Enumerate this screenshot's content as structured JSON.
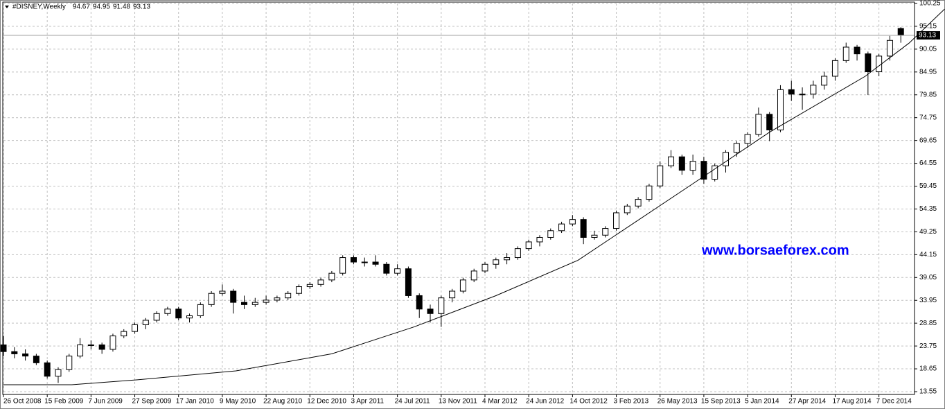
{
  "chart_data": {
    "type": "candlestick",
    "title": "#DISNEY,Weekly",
    "watermark": "www.borsaeforex.com",
    "ylim": [
      13.55,
      100.25
    ],
    "yticks": [
      13.55,
      18.65,
      23.75,
      28.85,
      33.95,
      39.05,
      44.15,
      49.25,
      54.35,
      59.45,
      64.55,
      69.65,
      74.75,
      79.85,
      84.95,
      90.05,
      95.15,
      100.25
    ],
    "xlim": [
      0,
      332.5
    ],
    "xticks": [
      {
        "value": 0,
        "label": "26 Oct 2008"
      },
      {
        "value": 16,
        "label": "15 Feb 2009"
      },
      {
        "value": 32,
        "label": "7 Jun 2009"
      },
      {
        "value": 48,
        "label": "27 Sep 2009"
      },
      {
        "value": 64,
        "label": "17 Jan 2010"
      },
      {
        "value": 80,
        "label": "9 May 2010"
      },
      {
        "value": 96,
        "label": "22 Aug 2010"
      },
      {
        "value": 112,
        "label": "12 Dec 2010"
      },
      {
        "value": 128,
        "label": "3 Apr 2011"
      },
      {
        "value": 144,
        "label": "24 Jul 2011"
      },
      {
        "value": 160,
        "label": "13 Nov 2011"
      },
      {
        "value": 176,
        "label": "4 Mar 2012"
      },
      {
        "value": 192,
        "label": "24 Jun 2012"
      },
      {
        "value": 208,
        "label": "14 Oct 2012"
      },
      {
        "value": 224,
        "label": "3 Feb 2013"
      },
      {
        "value": 240,
        "label": "26 May 2013"
      },
      {
        "value": 256,
        "label": "15 Sep 2013"
      },
      {
        "value": 272,
        "label": "5 Jan 2014"
      },
      {
        "value": 288,
        "label": "27 Apr 2014"
      },
      {
        "value": 304,
        "label": "17 Aug 2014"
      },
      {
        "value": 320,
        "label": "7 Dec 2014"
      }
    ],
    "grid": true,
    "up_color": "#ffffff",
    "down_color": "#000000",
    "x": [
      0,
      4,
      8,
      12,
      16,
      20,
      24,
      28,
      32,
      36,
      40,
      44,
      48,
      52,
      56,
      60,
      64,
      68,
      72,
      76,
      80,
      84,
      88,
      92,
      96,
      100,
      104,
      108,
      112,
      116,
      120,
      124,
      128,
      132,
      136,
      140,
      144,
      148,
      152,
      156,
      160,
      164,
      168,
      172,
      176,
      180,
      184,
      188,
      192,
      196,
      200,
      204,
      208,
      212,
      216,
      220,
      224,
      228,
      232,
      236,
      240,
      244,
      248,
      252,
      256,
      260,
      264,
      268,
      272,
      276,
      280,
      284,
      288,
      292,
      296,
      300,
      304,
      308,
      312,
      316,
      320,
      324,
      328
    ],
    "candles": [
      [
        24,
        26,
        21.5,
        22.5
      ],
      [
        22.5,
        23.5,
        21,
        22
      ],
      [
        22,
        23,
        20.5,
        21.5
      ],
      [
        21.5,
        22,
        19.5,
        20
      ],
      [
        20,
        20.5,
        16.5,
        17
      ],
      [
        17,
        19,
        15.5,
        18.5
      ],
      [
        18.5,
        22,
        18,
        21.5
      ],
      [
        21.5,
        25.5,
        21,
        24
      ],
      [
        24,
        25,
        23,
        24
      ],
      [
        24,
        24.5,
        22,
        23
      ],
      [
        23,
        26.5,
        22.5,
        26
      ],
      [
        26,
        27.5,
        25.5,
        27
      ],
      [
        27,
        29,
        26.5,
        28.5
      ],
      [
        28.5,
        30,
        27.5,
        29.5
      ],
      [
        29.5,
        31.5,
        29,
        31
      ],
      [
        31,
        32.5,
        30.5,
        32
      ],
      [
        32,
        32.5,
        29.5,
        30
      ],
      [
        30,
        31,
        29,
        30.5
      ],
      [
        30.5,
        33.5,
        30,
        33
      ],
      [
        33,
        36,
        32.5,
        35.5
      ],
      [
        35.5,
        37.5,
        35,
        36
      ],
      [
        36,
        36.5,
        31,
        33.5
      ],
      [
        33.5,
        35,
        32,
        33
      ],
      [
        33,
        34.5,
        32.5,
        33.5
      ],
      [
        33.5,
        35,
        33,
        34
      ],
      [
        34,
        35,
        33.5,
        34.5
      ],
      [
        34.5,
        36,
        34,
        35.5
      ],
      [
        35.5,
        37.5,
        35,
        37
      ],
      [
        37,
        38,
        36.5,
        37.5
      ],
      [
        37.5,
        39,
        37,
        38.5
      ],
      [
        38.5,
        40.5,
        38,
        40
      ],
      [
        40,
        44,
        39.5,
        43.5
      ],
      [
        43.5,
        44,
        42,
        42.5
      ],
      [
        42.5,
        43.5,
        41.5,
        42.5
      ],
      [
        42.5,
        44,
        41.5,
        42
      ],
      [
        42,
        42.5,
        39.5,
        40
      ],
      [
        40,
        42,
        39.5,
        41
      ],
      [
        41,
        41.5,
        34.5,
        35
      ],
      [
        35,
        35.5,
        30,
        32
      ],
      [
        32,
        33,
        29,
        31
      ],
      [
        31,
        35,
        28,
        34.5
      ],
      [
        34.5,
        36.5,
        33.5,
        36
      ],
      [
        36,
        39,
        35.5,
        38.5
      ],
      [
        38.5,
        41,
        38,
        40.5
      ],
      [
        40.5,
        42.5,
        40,
        42
      ],
      [
        42,
        43.5,
        41,
        43
      ],
      [
        43,
        44.5,
        42,
        43.5
      ],
      [
        43.5,
        46,
        43,
        45.5
      ],
      [
        45.5,
        47.5,
        45,
        47
      ],
      [
        47,
        48.5,
        46,
        48
      ],
      [
        48,
        50,
        47.5,
        49.5
      ],
      [
        49.5,
        51.5,
        49,
        51
      ],
      [
        51,
        53,
        50.5,
        52
      ],
      [
        52,
        52.5,
        46.5,
        48
      ],
      [
        48,
        49.5,
        47.5,
        48.5
      ],
      [
        48.5,
        50.5,
        48,
        50
      ],
      [
        50,
        54,
        49.5,
        53.5
      ],
      [
        53.5,
        55.5,
        53,
        55
      ],
      [
        55,
        57,
        54.5,
        56.5
      ],
      [
        56.5,
        60,
        56,
        59.5
      ],
      [
        59.5,
        65,
        59,
        64
      ],
      [
        64,
        67.5,
        63.5,
        66
      ],
      [
        66,
        66.5,
        62,
        63
      ],
      [
        63,
        66.5,
        62,
        65
      ],
      [
        65,
        66,
        60,
        61
      ],
      [
        61,
        64.5,
        60.5,
        64
      ],
      [
        64,
        67.5,
        62.5,
        67
      ],
      [
        67,
        69.5,
        66,
        69
      ],
      [
        69,
        71.5,
        68,
        71
      ],
      [
        71,
        77,
        70.5,
        75.5
      ],
      [
        75.5,
        76,
        69.5,
        72
      ],
      [
        72,
        82,
        71.5,
        81
      ],
      [
        81,
        83,
        78.5,
        80
      ],
      [
        80,
        81.5,
        76.5,
        80
      ],
      [
        80,
        83,
        79,
        82
      ],
      [
        82,
        85,
        81,
        84
      ],
      [
        84,
        88,
        83,
        87.5
      ],
      [
        87.5,
        91.5,
        87,
        90.5
      ],
      [
        90.5,
        91,
        87.5,
        89
      ],
      [
        89,
        89.5,
        79.8,
        85
      ],
      [
        85,
        89,
        84,
        88.5
      ],
      [
        88.5,
        93,
        87.5,
        92
      ],
      [
        94.67,
        94.95,
        91.48,
        93.13
      ]
    ],
    "curve": {
      "x": [
        0,
        25,
        49,
        85,
        120,
        150,
        180,
        210,
        252,
        280,
        315,
        331,
        344
      ],
      "values": [
        15.1,
        15.1,
        16.2,
        18.2,
        22,
        28,
        35,
        42.9,
        60,
        71.5,
        84,
        91.4,
        99
      ]
    }
  }
}
